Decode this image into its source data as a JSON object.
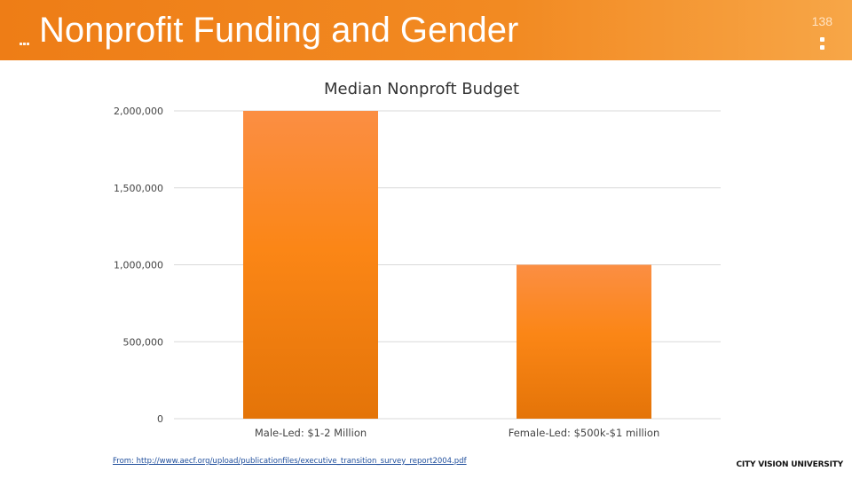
{
  "slide": {
    "title": "Nonprofit Funding and Gender",
    "page_number": "138",
    "source": "From: http://www.aecf.org/upload/publicationfiles/executive_transition_survey_report2004.pdf",
    "brand": "CITY VISION UNIVERSITY"
  },
  "colors": {
    "header": "#ee7d16",
    "bar_top": "#fb8e43",
    "bar_mid": "#fb8616",
    "bar_bottom": "#e47408",
    "grid": "#d9d9d9"
  },
  "chart_data": {
    "type": "bar",
    "title": "Median Nonproft Budget",
    "categories": [
      "Male-Led: $1-2 Million",
      "Female-Led: $500k-$1 million"
    ],
    "values": [
      2000000,
      1000000
    ],
    "ylim": [
      0,
      2000000
    ],
    "yticks": [
      0,
      500000,
      1000000,
      1500000,
      2000000
    ],
    "ytick_labels": [
      "0",
      "500,000",
      "1,000,000",
      "1,500,000",
      "2,000,000"
    ],
    "xlabel": "",
    "ylabel": "",
    "grid": true,
    "legend": "none"
  }
}
